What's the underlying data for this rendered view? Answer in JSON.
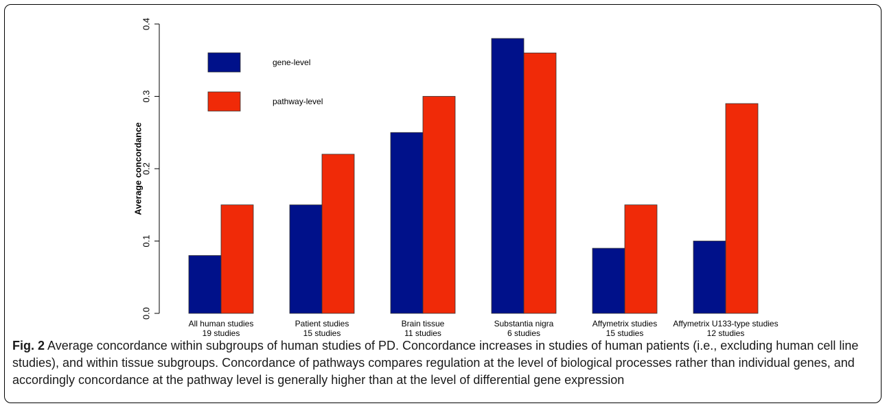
{
  "chart_data": {
    "type": "bar",
    "title": "",
    "ylabel": "Average concordance",
    "xlabel": "",
    "ylim": [
      0,
      0.4
    ],
    "yticks": [
      "0.0",
      "0.1",
      "0.2",
      "0.3",
      "0.4"
    ],
    "ytick_values": [
      0,
      0.1,
      0.2,
      0.3,
      0.4
    ],
    "categories": [
      [
        "All human studies",
        "19 studies"
      ],
      [
        "Patient studies",
        "15 studies"
      ],
      [
        "Brain tissue",
        "11 studies"
      ],
      [
        "Substantia nigra",
        "6 studies"
      ],
      [
        "Affymetrix studies",
        "15 studies"
      ],
      [
        "Affymetrix U133-type studies",
        "12 studies"
      ]
    ],
    "series": [
      {
        "name": "gene-level",
        "color": "#00118a",
        "values": [
          0.08,
          0.15,
          0.25,
          0.38,
          0.09,
          0.1
        ]
      },
      {
        "name": "pathway-level",
        "color": "#f02a08",
        "values": [
          0.15,
          0.22,
          0.3,
          0.36,
          0.15,
          0.29
        ]
      }
    ],
    "legend_position": "top-left",
    "grid": false
  },
  "caption": {
    "label": "Fig. 2",
    "text": " Average concordance within subgroups of human studies of PD. Concordance increases in studies of human patients (i.e., excluding human cell line studies), and within tissue subgroups. Concordance of pathways compares regulation at the level of biological processes rather than individual genes, and accordingly concordance at the pathway level is generally higher than at the level of differential gene expression"
  }
}
